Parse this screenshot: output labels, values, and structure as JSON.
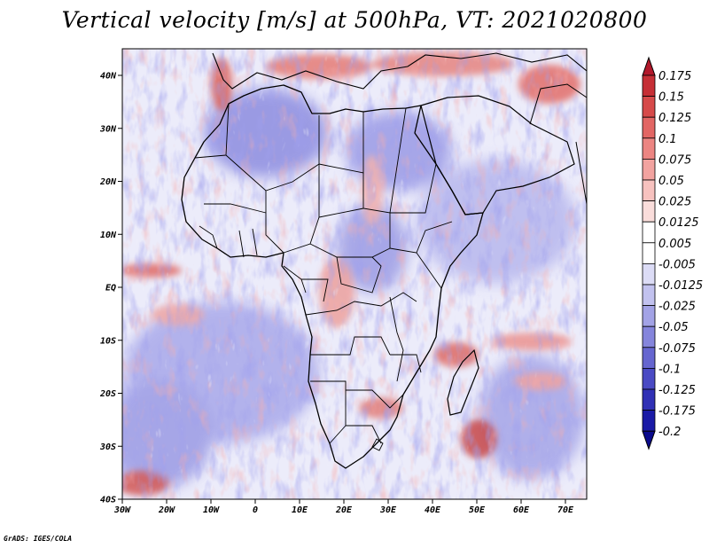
{
  "title": "Vertical velocity [m/s] at 500hPa, VT: 2021020800",
  "credit": "GrADS: IGES/COLA",
  "axes": {
    "lat_labels": [
      "40N",
      "30N",
      "20N",
      "10N",
      "EQ",
      "10S",
      "20S",
      "30S",
      "40S"
    ],
    "lon_labels": [
      "30W",
      "20W",
      "10W",
      "0",
      "10E",
      "20E",
      "30E",
      "40E",
      "50E",
      "60E",
      "70E"
    ]
  },
  "colorbar": {
    "labels": [
      "0.175",
      "0.15",
      "0.125",
      "0.1",
      "0.075",
      "0.05",
      "0.025",
      "0.0125",
      "0.005",
      "-0.005",
      "-0.0125",
      "-0.025",
      "-0.05",
      "-0.075",
      "-0.1",
      "-0.125",
      "-0.175",
      "-0.2"
    ],
    "colors": [
      "#b2182b",
      "#c62f36",
      "#d64a4a",
      "#e26664",
      "#ec8582",
      "#f2a3a0",
      "#f7c2bf",
      "#fadddb",
      "#ffffff",
      "#ffffff",
      "#dcdcf6",
      "#c2c2ef",
      "#a3a3e6",
      "#8585dc",
      "#6666d0",
      "#4a4ac4",
      "#3030b5",
      "#1a1aa6",
      "#0a0a8c"
    ]
  },
  "colors": {
    "ascent_red": "#d64a4a",
    "descent_blue": "#5a5ad4",
    "background_field": "#eeeefa",
    "coastline": "#000000"
  }
}
